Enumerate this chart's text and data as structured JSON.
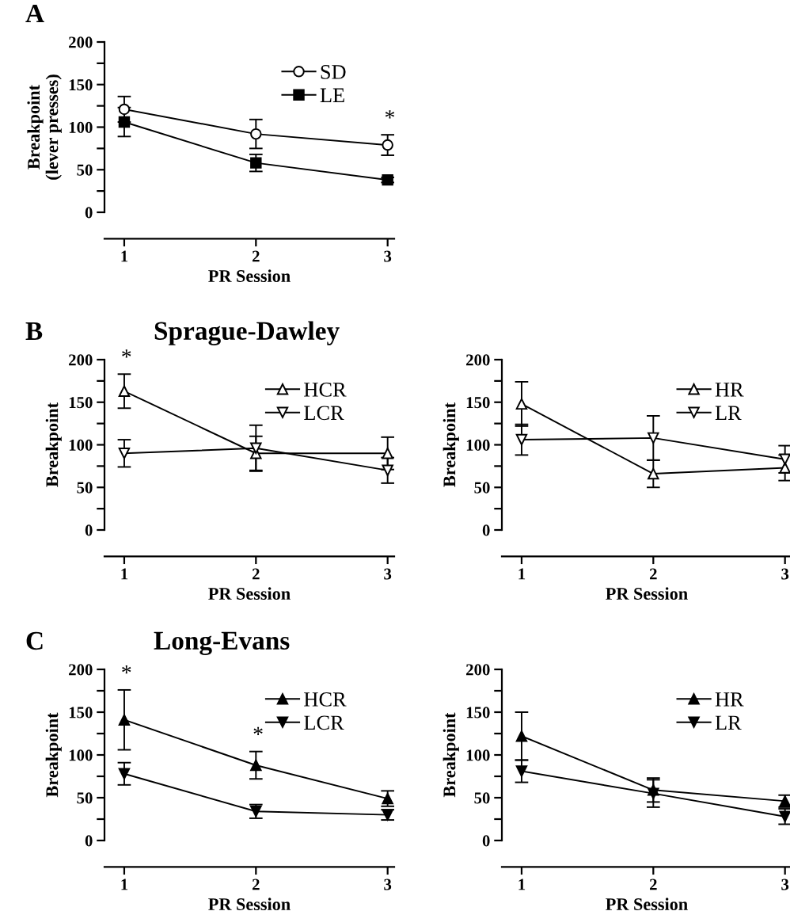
{
  "chart_data": [
    {
      "type": "line",
      "annotations": [
        "A",
        {
          "text": "*",
          "x": 3,
          "y": 91
        }
      ],
      "xlabel": "PR Session",
      "ylabel": "Breakpoint\n(lever presses)",
      "x": [
        1,
        2,
        3
      ],
      "xlim": [
        0.85,
        3.05
      ],
      "xticks": [
        1,
        2,
        3
      ],
      "ylim": [
        0,
        200
      ],
      "yticks": [
        0,
        {
          "value": 25,
          "label": null
        },
        50,
        {
          "value": 75,
          "label": null
        },
        100,
        {
          "value": 125,
          "label": null
        },
        150,
        {
          "value": 175,
          "label": null
        },
        200
      ],
      "legend": "top right",
      "grid": false,
      "series": [
        {
          "name": "SD",
          "color": "#ffffff",
          "marker": "circle",
          "values": [
            121,
            92,
            79
          ],
          "errors": [
            15,
            17,
            12
          ]
        },
        {
          "name": "LE",
          "color": "#000000",
          "marker": "square",
          "values": [
            106,
            58,
            38
          ],
          "errors": [
            17,
            10,
            3
          ]
        }
      ]
    },
    {
      "type": "line",
      "annotations": [
        "B",
        {
          "text": "*",
          "x": 1,
          "y": 183
        }
      ],
      "title": "Sprague-Dawley",
      "xlabel": "PR Session",
      "ylabel": "Breakpoint",
      "x": [
        1,
        2,
        3
      ],
      "xlim": [
        0.85,
        3.05
      ],
      "xticks": [
        1,
        2,
        3
      ],
      "ylim": [
        0,
        200
      ],
      "yticks": [
        0,
        {
          "value": 25,
          "label": null
        },
        50,
        {
          "value": 75,
          "label": null
        },
        100,
        {
          "value": 125,
          "label": null
        },
        150,
        {
          "value": 175,
          "label": null
        },
        200
      ],
      "legend": "top right",
      "grid": false,
      "series": [
        {
          "name": "HCR",
          "color": "#ffffff",
          "marker": "triangle",
          "values": [
            163,
            90,
            90
          ],
          "errors": [
            20,
            20,
            19
          ]
        },
        {
          "name": "LCR",
          "color": "#ffffff",
          "marker": "triangle_down",
          "values": [
            90,
            96,
            70
          ],
          "errors": [
            16,
            27,
            15
          ]
        }
      ]
    },
    {
      "type": "line",
      "xlabel": "PR Session",
      "ylabel": "Breakpoint",
      "x": [
        1,
        2,
        3
      ],
      "xlim": [
        0.85,
        3.05
      ],
      "xticks": [
        1,
        2,
        3
      ],
      "ylim": [
        0,
        200
      ],
      "yticks": [
        0,
        {
          "value": 25,
          "label": null
        },
        50,
        {
          "value": 75,
          "label": null
        },
        100,
        {
          "value": 125,
          "label": null
        },
        150,
        {
          "value": 175,
          "label": null
        },
        200
      ],
      "legend": "top right",
      "grid": false,
      "series": [
        {
          "name": "HR",
          "color": "#ffffff",
          "marker": "triangle",
          "values": [
            148,
            66,
            73
          ],
          "errors": [
            26,
            16,
            15
          ]
        },
        {
          "name": "LR",
          "color": "#ffffff",
          "marker": "triangle_down",
          "values": [
            106,
            108,
            83
          ],
          "errors": [
            18,
            26,
            16
          ]
        }
      ]
    },
    {
      "type": "line",
      "annotations": [
        "C",
        {
          "text": "*",
          "x": 1,
          "y": 176
        },
        {
          "text": "*",
          "x": 2,
          "y": 104
        }
      ],
      "title": "Long-Evans",
      "xlabel": "PR Session",
      "ylabel": "Breakpoint",
      "x": [
        1,
        2,
        3
      ],
      "xlim": [
        0.85,
        3.05
      ],
      "xticks": [
        1,
        2,
        3
      ],
      "ylim": [
        0,
        200
      ],
      "yticks": [
        0,
        {
          "value": 25,
          "label": null
        },
        50,
        {
          "value": 75,
          "label": null
        },
        100,
        {
          "value": 125,
          "label": null
        },
        150,
        {
          "value": 175,
          "label": null
        },
        200
      ],
      "legend": "top right",
      "grid": false,
      "series": [
        {
          "name": "HCR",
          "color": "#000000",
          "marker": "triangle",
          "values": [
            141,
            88,
            49
          ],
          "errors": [
            35,
            16,
            9
          ]
        },
        {
          "name": "LCR",
          "color": "#000000",
          "marker": "triangle_down",
          "values": [
            78,
            34,
            30
          ],
          "errors": [
            13,
            8,
            6
          ]
        }
      ]
    },
    {
      "type": "line",
      "xlabel": "PR Session",
      "ylabel": "Breakpoint",
      "x": [
        1,
        2,
        3
      ],
      "xlim": [
        0.85,
        3.05
      ],
      "xticks": [
        1,
        2,
        3
      ],
      "ylim": [
        0,
        200
      ],
      "yticks": [
        0,
        {
          "value": 25,
          "label": null
        },
        50,
        {
          "value": 75,
          "label": null
        },
        100,
        {
          "value": 125,
          "label": null
        },
        150,
        {
          "value": 175,
          "label": null
        },
        200
      ],
      "legend": "top right",
      "grid": false,
      "series": [
        {
          "name": "HR",
          "color": "#000000",
          "marker": "triangle",
          "values": [
            122,
            59,
            46
          ],
          "errors": [
            28,
            14,
            7
          ]
        },
        {
          "name": "LR",
          "color": "#000000",
          "marker": "triangle_down",
          "values": [
            81,
            55,
            28
          ],
          "errors": [
            13,
            16,
            9
          ]
        }
      ]
    }
  ]
}
